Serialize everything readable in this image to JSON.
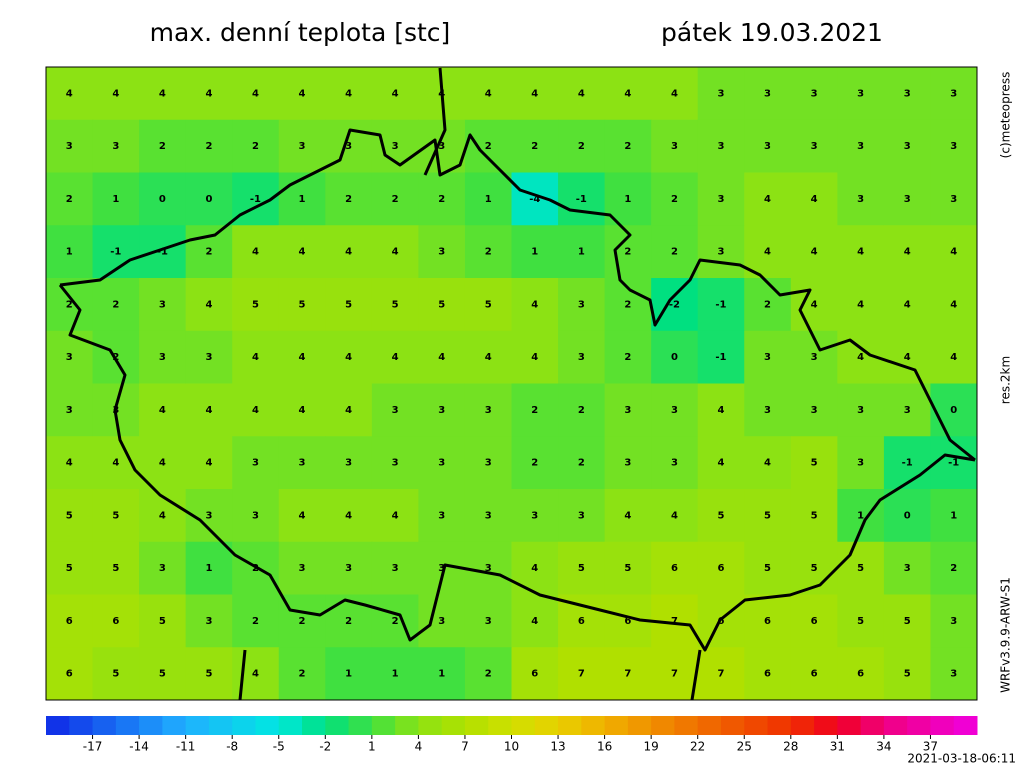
{
  "header": {
    "title": "max. denní teplota [stc]",
    "date": "pátek 19.03.2021"
  },
  "side": {
    "copyright": "(c)meteopress",
    "resolution": "res.2km",
    "model": "WRFv3.9.9-ARW-S1"
  },
  "field": {
    "rows": [
      [
        4,
        4,
        4,
        4,
        4,
        4,
        4,
        4,
        4,
        4,
        4,
        4,
        4,
        4,
        3,
        3,
        3,
        3,
        3,
        3
      ],
      [
        3,
        3,
        2,
        2,
        2,
        3,
        3,
        3,
        3,
        2,
        2,
        2,
        2,
        3,
        3,
        3,
        3,
        3,
        3,
        3
      ],
      [
        2,
        1,
        0,
        0,
        -1,
        1,
        2,
        2,
        2,
        1,
        -4,
        -1,
        1,
        2,
        3,
        4,
        4,
        3,
        3,
        3
      ],
      [
        1,
        -1,
        -1,
        2,
        4,
        4,
        4,
        4,
        3,
        2,
        1,
        1,
        2,
        2,
        3,
        4,
        4,
        4,
        4,
        4
      ],
      [
        2,
        2,
        3,
        4,
        5,
        5,
        5,
        5,
        5,
        5,
        4,
        3,
        2,
        -2,
        -1,
        2,
        4,
        4,
        4,
        4
      ],
      [
        3,
        2,
        3,
        3,
        4,
        4,
        4,
        4,
        4,
        4,
        4,
        3,
        2,
        0,
        -1,
        3,
        3,
        4,
        4,
        4
      ],
      [
        3,
        3,
        4,
        4,
        4,
        4,
        4,
        3,
        3,
        3,
        2,
        2,
        3,
        3,
        4,
        3,
        3,
        3,
        3,
        0
      ],
      [
        4,
        4,
        4,
        4,
        3,
        3,
        3,
        3,
        3,
        3,
        2,
        2,
        3,
        3,
        4,
        4,
        5,
        3,
        -1,
        -1
      ],
      [
        5,
        5,
        4,
        3,
        3,
        4,
        4,
        4,
        3,
        3,
        3,
        3,
        4,
        4,
        5,
        5,
        5,
        1,
        0,
        1
      ],
      [
        5,
        5,
        3,
        1,
        2,
        3,
        3,
        3,
        3,
        3,
        4,
        5,
        5,
        6,
        6,
        5,
        5,
        5,
        3,
        2
      ],
      [
        6,
        6,
        5,
        3,
        2,
        2,
        2,
        2,
        3,
        3,
        4,
        6,
        6,
        7,
        6,
        6,
        6,
        5,
        5,
        3
      ],
      [
        6,
        5,
        5,
        5,
        4,
        2,
        1,
        1,
        1,
        2,
        6,
        7,
        7,
        7,
        7,
        6,
        6,
        6,
        5,
        3
      ]
    ]
  },
  "colorbar": {
    "range": [
      -20,
      40
    ],
    "ticks": [
      -17,
      -14,
      -11,
      -8,
      -5,
      -2,
      1,
      4,
      7,
      10,
      13,
      16,
      19,
      22,
      25,
      28,
      31,
      34,
      37
    ]
  },
  "footer": {
    "timestamp": "2021-03-18-06:11"
  }
}
